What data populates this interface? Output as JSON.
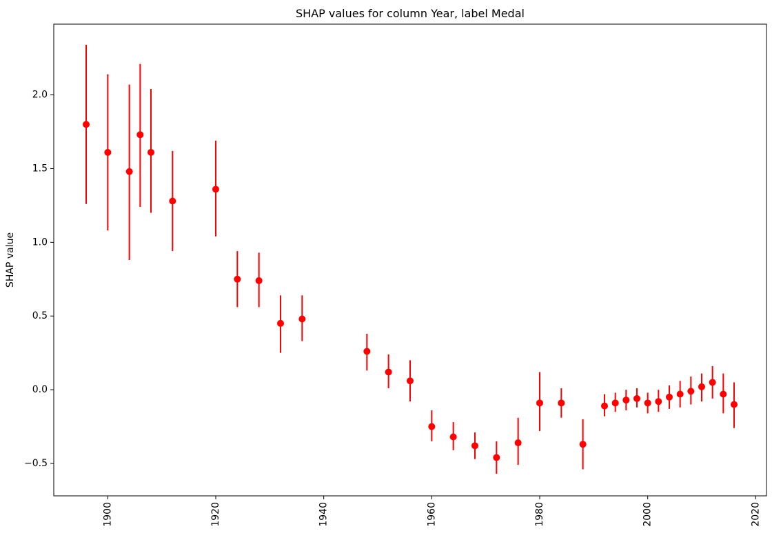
{
  "chart_data": {
    "type": "scatter",
    "title": "SHAP values for column Year, label Medal",
    "xlabel": "",
    "ylabel": "SHAP value",
    "xlim": [
      1890,
      2022
    ],
    "ylim": [
      -0.72,
      2.48
    ],
    "xticks": [
      1900,
      1920,
      1940,
      1960,
      1980,
      2000,
      2020
    ],
    "yticks": [
      -0.5,
      0.0,
      0.5,
      1.0,
      1.5,
      2.0
    ],
    "ytick_labels": [
      "−0.5",
      "0.0",
      "0.5",
      "1.0",
      "1.5",
      "2.0"
    ],
    "xtick_rotation": "vertical",
    "grid": false,
    "legend": "none",
    "color": "#ff0000",
    "series": [
      {
        "marker": "point-with-error-bar",
        "points": [
          {
            "x": 1896,
            "y": 1.8,
            "low": 1.26,
            "high": 2.34
          },
          {
            "x": 1900,
            "y": 1.61,
            "low": 1.08,
            "high": 2.14
          },
          {
            "x": 1904,
            "y": 1.48,
            "low": 0.88,
            "high": 2.07
          },
          {
            "x": 1906,
            "y": 1.73,
            "low": 1.24,
            "high": 2.21
          },
          {
            "x": 1908,
            "y": 1.61,
            "low": 1.2,
            "high": 2.04
          },
          {
            "x": 1912,
            "y": 1.28,
            "low": 0.94,
            "high": 1.62
          },
          {
            "x": 1920,
            "y": 1.36,
            "low": 1.04,
            "high": 1.69
          },
          {
            "x": 1924,
            "y": 0.75,
            "low": 0.56,
            "high": 0.94
          },
          {
            "x": 1928,
            "y": 0.74,
            "low": 0.56,
            "high": 0.93
          },
          {
            "x": 1932,
            "y": 0.45,
            "low": 0.25,
            "high": 0.64
          },
          {
            "x": 1936,
            "y": 0.48,
            "low": 0.33,
            "high": 0.64
          },
          {
            "x": 1948,
            "y": 0.26,
            "low": 0.13,
            "high": 0.38
          },
          {
            "x": 1952,
            "y": 0.12,
            "low": 0.01,
            "high": 0.24
          },
          {
            "x": 1956,
            "y": 0.06,
            "low": -0.08,
            "high": 0.2
          },
          {
            "x": 1960,
            "y": -0.25,
            "low": -0.35,
            "high": -0.14
          },
          {
            "x": 1964,
            "y": -0.32,
            "low": -0.41,
            "high": -0.22
          },
          {
            "x": 1968,
            "y": -0.38,
            "low": -0.47,
            "high": -0.29
          },
          {
            "x": 1972,
            "y": -0.46,
            "low": -0.57,
            "high": -0.35
          },
          {
            "x": 1976,
            "y": -0.36,
            "low": -0.51,
            "high": -0.19
          },
          {
            "x": 1980,
            "y": -0.09,
            "low": -0.28,
            "high": 0.12
          },
          {
            "x": 1984,
            "y": -0.09,
            "low": -0.19,
            "high": 0.01
          },
          {
            "x": 1988,
            "y": -0.37,
            "low": -0.54,
            "high": -0.2
          },
          {
            "x": 1992,
            "y": -0.11,
            "low": -0.18,
            "high": -0.03
          },
          {
            "x": 1994,
            "y": -0.09,
            "low": -0.15,
            "high": -0.02
          },
          {
            "x": 1996,
            "y": -0.07,
            "low": -0.14,
            "high": 0.0
          },
          {
            "x": 1998,
            "y": -0.06,
            "low": -0.12,
            "high": 0.01
          },
          {
            "x": 2000,
            "y": -0.09,
            "low": -0.16,
            "high": -0.02
          },
          {
            "x": 2002,
            "y": -0.08,
            "low": -0.15,
            "high": 0.0
          },
          {
            "x": 2004,
            "y": -0.05,
            "low": -0.13,
            "high": 0.03
          },
          {
            "x": 2006,
            "y": -0.03,
            "low": -0.12,
            "high": 0.06
          },
          {
            "x": 2008,
            "y": -0.01,
            "low": -0.1,
            "high": 0.09
          },
          {
            "x": 2010,
            "y": 0.02,
            "low": -0.08,
            "high": 0.11
          },
          {
            "x": 2012,
            "y": 0.05,
            "low": -0.06,
            "high": 0.16
          },
          {
            "x": 2014,
            "y": -0.03,
            "low": -0.16,
            "high": 0.11
          },
          {
            "x": 2016,
            "y": -0.1,
            "low": -0.26,
            "high": 0.05
          }
        ]
      }
    ]
  }
}
